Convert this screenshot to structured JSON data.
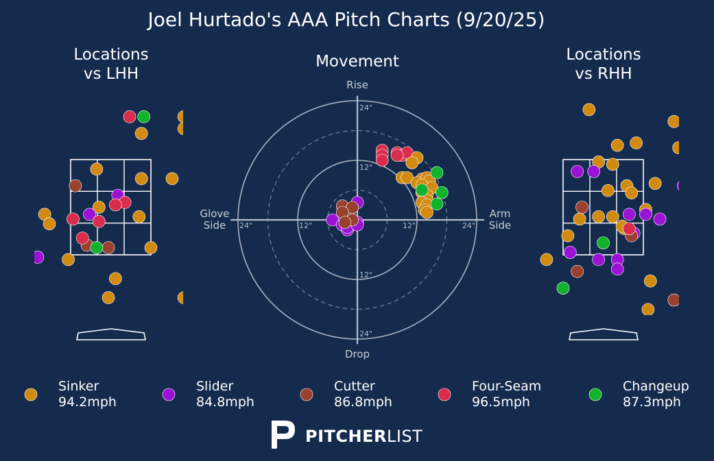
{
  "title": "Joel Hurtado's AAA Pitch Charts (9/20/25)",
  "brand": {
    "word_bold": "PITCHER",
    "word_light": "LIST"
  },
  "colors": {
    "background": "#152b4e",
    "Sinker": "#d28a11",
    "Slider": "#9b12d6",
    "Cutter": "#99402e",
    "Four-Seam": "#d92d4d",
    "Changeup": "#11b22c"
  },
  "legend": [
    {
      "name": "Sinker",
      "velo": "94.2mph"
    },
    {
      "name": "Slider",
      "velo": "84.8mph"
    },
    {
      "name": "Cutter",
      "velo": "86.8mph"
    },
    {
      "name": "Four-Seam",
      "velo": "96.5mph"
    },
    {
      "name": "Changeup",
      "velo": "87.3mph"
    }
  ],
  "chart_data": [
    {
      "type": "scatter",
      "title": "Locations\nvs LHH",
      "xlim": [
        -2.6,
        2.8
      ],
      "ylim": [
        -0.4,
        5.2
      ],
      "strike_zone": {
        "x": [
          -0.85,
          0.85
        ],
        "y": [
          1.5,
          3.5
        ]
      },
      "points": [
        {
          "series": "Sinker",
          "x": -0.3,
          "y": 3.3
        },
        {
          "series": "Sinker",
          "x": 0.65,
          "y": 4.05
        },
        {
          "series": "Sinker",
          "x": 0.65,
          "y": 3.1
        },
        {
          "series": "Sinker",
          "x": 1.3,
          "y": 3.1
        },
        {
          "series": "Sinker",
          "x": -0.25,
          "y": 2.5
        },
        {
          "series": "Sinker",
          "x": -1.4,
          "y": 2.35
        },
        {
          "series": "Sinker",
          "x": 0.6,
          "y": 2.3
        },
        {
          "series": "Sinker",
          "x": -1.3,
          "y": 2.15
        },
        {
          "series": "Sinker",
          "x": 0.85,
          "y": 1.65
        },
        {
          "series": "Sinker",
          "x": -0.9,
          "y": 1.4
        },
        {
          "series": "Sinker",
          "x": 0.1,
          "y": 1.0
        },
        {
          "series": "Sinker",
          "x": -0.05,
          "y": 0.6
        },
        {
          "series": "Sinker",
          "x": 1.55,
          "y": 4.4
        },
        {
          "series": "Sinker",
          "x": 1.55,
          "y": 4.15
        },
        {
          "series": "Sinker",
          "x": 1.55,
          "y": 0.6
        },
        {
          "series": "Slider",
          "x": 0.15,
          "y": 2.75
        },
        {
          "series": "Slider",
          "x": -0.45,
          "y": 2.35
        },
        {
          "series": "Slider",
          "x": -1.55,
          "y": 1.45
        },
        {
          "series": "Cutter",
          "x": -0.75,
          "y": 2.95
        },
        {
          "series": "Cutter",
          "x": -0.5,
          "y": 1.7
        },
        {
          "series": "Cutter",
          "x": -0.05,
          "y": 1.65
        },
        {
          "series": "Four-Seam",
          "x": 0.4,
          "y": 4.4
        },
        {
          "series": "Four-Seam",
          "x": 0.3,
          "y": 2.6
        },
        {
          "series": "Four-Seam",
          "x": 0.1,
          "y": 2.55
        },
        {
          "series": "Four-Seam",
          "x": -0.8,
          "y": 2.25
        },
        {
          "series": "Four-Seam",
          "x": -0.25,
          "y": 2.2
        },
        {
          "series": "Four-Seam",
          "x": -0.6,
          "y": 1.85
        },
        {
          "series": "Changeup",
          "x": 0.7,
          "y": 4.4
        },
        {
          "series": "Changeup",
          "x": -0.3,
          "y": 1.65
        }
      ]
    },
    {
      "type": "scatter",
      "title": "Movement",
      "axis_labels": {
        "top": "Rise",
        "bottom": "Drop",
        "left": "Glove\nSide",
        "right": "Arm\nSide"
      },
      "ring_labels": [
        "24\"",
        "12\"",
        "12\"",
        "24\"",
        "24\"",
        "12\"",
        "12\"",
        "24\""
      ],
      "rings_inches": [
        6,
        12,
        18,
        24
      ],
      "xlim": [
        -24,
        24
      ],
      "ylim": [
        -24,
        24
      ],
      "points": [
        {
          "series": "Four-Seam",
          "x": 5,
          "y": 14
        },
        {
          "series": "Four-Seam",
          "x": 5,
          "y": 13
        },
        {
          "series": "Four-Seam",
          "x": 5,
          "y": 12
        },
        {
          "series": "Four-Seam",
          "x": 8,
          "y": 13.5
        },
        {
          "series": "Four-Seam",
          "x": 9,
          "y": 13
        },
        {
          "series": "Four-Seam",
          "x": 10,
          "y": 13.5
        },
        {
          "series": "Four-Seam",
          "x": 8,
          "y": 13
        },
        {
          "series": "Sinker",
          "x": 12,
          "y": 12.5
        },
        {
          "series": "Sinker",
          "x": 11,
          "y": 11.5
        },
        {
          "series": "Sinker",
          "x": 9,
          "y": 8.5
        },
        {
          "series": "Sinker",
          "x": 10,
          "y": 8.5
        },
        {
          "series": "Sinker",
          "x": 13,
          "y": 8.2
        },
        {
          "series": "Sinker",
          "x": 14,
          "y": 8.5
        },
        {
          "series": "Sinker",
          "x": 14.5,
          "y": 7.8
        },
        {
          "series": "Sinker",
          "x": 12,
          "y": 7.5
        },
        {
          "series": "Sinker",
          "x": 13,
          "y": 7
        },
        {
          "series": "Sinker",
          "x": 15,
          "y": 6.5
        },
        {
          "series": "Sinker",
          "x": 13,
          "y": 5.5
        },
        {
          "series": "Sinker",
          "x": 14,
          "y": 5
        },
        {
          "series": "Sinker",
          "x": 14,
          "y": 4
        },
        {
          "series": "Sinker",
          "x": 13,
          "y": 3.5
        },
        {
          "series": "Sinker",
          "x": 14,
          "y": 3
        },
        {
          "series": "Sinker",
          "x": 13.5,
          "y": 2
        },
        {
          "series": "Sinker",
          "x": 14,
          "y": 1.5
        },
        {
          "series": "Sinker",
          "x": -1.5,
          "y": -0.5
        },
        {
          "series": "Changeup",
          "x": 16,
          "y": 9.5
        },
        {
          "series": "Changeup",
          "x": 13,
          "y": 6
        },
        {
          "series": "Changeup",
          "x": 17,
          "y": 5.5
        },
        {
          "series": "Changeup",
          "x": 16,
          "y": 3.2
        },
        {
          "series": "Slider",
          "x": 0,
          "y": 3.5
        },
        {
          "series": "Slider",
          "x": -5,
          "y": 0
        },
        {
          "series": "Slider",
          "x": -3,
          "y": -1
        },
        {
          "series": "Slider",
          "x": -2,
          "y": -2
        },
        {
          "series": "Slider",
          "x": -2,
          "y": -1.5
        },
        {
          "series": "Slider",
          "x": 0,
          "y": -0.5
        },
        {
          "series": "Slider",
          "x": 0,
          "y": -1
        },
        {
          "series": "Cutter",
          "x": -3,
          "y": 2.8
        },
        {
          "series": "Cutter",
          "x": -1,
          "y": 2.5
        },
        {
          "series": "Cutter",
          "x": -3,
          "y": 1.5
        },
        {
          "series": "Cutter",
          "x": -1,
          "y": 0
        },
        {
          "series": "Cutter",
          "x": -2.5,
          "y": -0.5
        }
      ]
    },
    {
      "type": "scatter",
      "title": "Locations\nvs RHH",
      "xlim": [
        -1.9,
        3.6
      ],
      "ylim": [
        -0.4,
        5.2
      ],
      "strike_zone": {
        "x": [
          -0.85,
          0.85
        ],
        "y": [
          1.5,
          3.5
        ]
      },
      "points": [
        {
          "series": "Sinker",
          "x": -0.3,
          "y": 4.55
        },
        {
          "series": "Sinker",
          "x": 1.5,
          "y": 4.3
        },
        {
          "series": "Sinker",
          "x": 1.95,
          "y": 4.35
        },
        {
          "series": "Sinker",
          "x": 0.3,
          "y": 3.8
        },
        {
          "series": "Sinker",
          "x": 0.7,
          "y": 3.85
        },
        {
          "series": "Sinker",
          "x": 1.75,
          "y": 3.9
        },
        {
          "series": "Sinker",
          "x": 1.6,
          "y": 3.75
        },
        {
          "series": "Sinker",
          "x": 1.95,
          "y": 3.7
        },
        {
          "series": "Sinker",
          "x": -0.1,
          "y": 3.45
        },
        {
          "series": "Sinker",
          "x": 0.2,
          "y": 3.4
        },
        {
          "series": "Sinker",
          "x": 1.1,
          "y": 3.0
        },
        {
          "series": "Sinker",
          "x": 0.5,
          "y": 2.95
        },
        {
          "series": "Sinker",
          "x": 0.6,
          "y": 2.8
        },
        {
          "series": "Sinker",
          "x": 0.1,
          "y": 2.85
        },
        {
          "series": "Sinker",
          "x": 0.2,
          "y": 2.3
        },
        {
          "series": "Sinker",
          "x": -0.1,
          "y": 2.3
        },
        {
          "series": "Sinker",
          "x": -0.5,
          "y": 2.25
        },
        {
          "series": "Sinker",
          "x": 0.9,
          "y": 2.45
        },
        {
          "series": "Sinker",
          "x": 0.45,
          "y": 2.05
        },
        {
          "series": "Sinker",
          "x": -0.75,
          "y": 1.9
        },
        {
          "series": "Sinker",
          "x": -1.2,
          "y": 1.4
        },
        {
          "series": "Sinker",
          "x": 1.0,
          "y": 0.95
        },
        {
          "series": "Sinker",
          "x": 0.95,
          "y": 0.35
        },
        {
          "series": "Sinker",
          "x": 0.4,
          "y": 2.1
        },
        {
          "series": "Slider",
          "x": -0.55,
          "y": 3.25
        },
        {
          "series": "Slider",
          "x": -0.2,
          "y": 3.25
        },
        {
          "series": "Slider",
          "x": 1.7,
          "y": 2.95
        },
        {
          "series": "Slider",
          "x": 0.9,
          "y": 2.35
        },
        {
          "series": "Slider",
          "x": 0.55,
          "y": 2.35
        },
        {
          "series": "Slider",
          "x": 1.2,
          "y": 2.25
        },
        {
          "series": "Slider",
          "x": 0.65,
          "y": 1.95
        },
        {
          "series": "Slider",
          "x": 1.85,
          "y": 1.75
        },
        {
          "series": "Slider",
          "x": -0.7,
          "y": 1.55
        },
        {
          "series": "Slider",
          "x": -0.1,
          "y": 1.4
        },
        {
          "series": "Slider",
          "x": 0.3,
          "y": 1.4
        },
        {
          "series": "Slider",
          "x": 0.3,
          "y": 1.2
        },
        {
          "series": "Cutter",
          "x": -0.45,
          "y": 2.5
        },
        {
          "series": "Cutter",
          "x": 0.6,
          "y": 1.9
        },
        {
          "series": "Cutter",
          "x": -0.55,
          "y": 1.15
        },
        {
          "series": "Cutter",
          "x": 1.5,
          "y": 0.55
        },
        {
          "series": "Four-Seam",
          "x": 0.55,
          "y": 2.05
        },
        {
          "series": "Changeup",
          "x": 0.0,
          "y": 1.75
        },
        {
          "series": "Changeup",
          "x": -0.85,
          "y": 0.8
        }
      ]
    }
  ]
}
